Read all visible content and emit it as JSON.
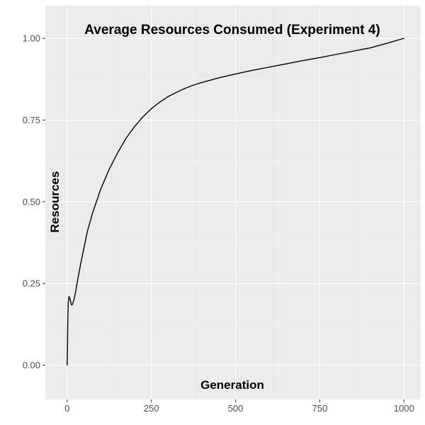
{
  "chart_data": {
    "type": "line",
    "title": "Average Resources Consumed (Experiment 4)",
    "xlabel": "Generation",
    "ylabel": "Resources",
    "xlim": [
      -65,
      1050
    ],
    "ylim": [
      -0.105,
      1.1
    ],
    "x_ticks": [
      0,
      250,
      500,
      750,
      1000
    ],
    "x_tick_labels": [
      "0",
      "250",
      "500",
      "750",
      "1000"
    ],
    "y_ticks": [
      0.0,
      0.25,
      0.5,
      0.75,
      1.0
    ],
    "y_tick_labels": [
      "0.00",
      "0.25",
      "0.50",
      "0.75",
      "1.00"
    ],
    "grid": true,
    "legend": "none",
    "colors": {
      "panel": "#ebebeb",
      "grid_major": "#ffffff",
      "grid_minor": "#f5f5f5",
      "line": "#000000"
    },
    "series": [
      {
        "x": [
          0,
          1,
          2,
          3,
          5,
          8,
          12,
          15,
          20,
          25,
          30,
          40,
          50,
          60,
          75,
          100,
          125,
          150,
          175,
          200,
          225,
          250,
          275,
          300,
          325,
          350,
          375,
          400,
          450,
          500,
          550,
          600,
          650,
          700,
          750,
          800,
          850,
          900,
          950,
          1000
        ],
        "values": [
          0.0,
          0.08,
          0.15,
          0.19,
          0.21,
          0.205,
          0.185,
          0.185,
          0.2,
          0.225,
          0.255,
          0.31,
          0.36,
          0.41,
          0.465,
          0.54,
          0.6,
          0.65,
          0.695,
          0.73,
          0.76,
          0.785,
          0.805,
          0.822,
          0.835,
          0.847,
          0.857,
          0.865,
          0.879,
          0.891,
          0.902,
          0.912,
          0.922,
          0.932,
          0.941,
          0.951,
          0.961,
          0.971,
          0.985,
          1.0
        ]
      }
    ]
  }
}
